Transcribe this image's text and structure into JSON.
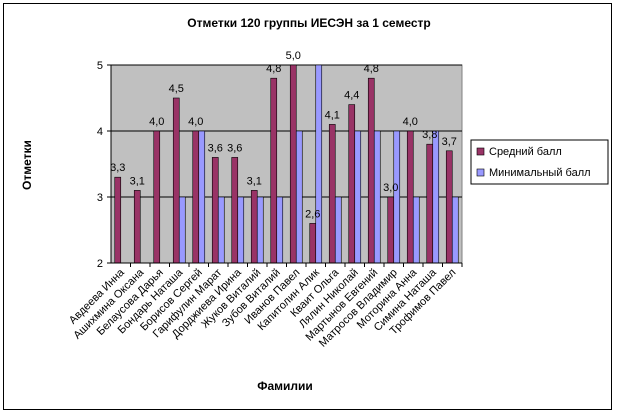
{
  "chart_data": {
    "type": "bar",
    "title": "Отметки  120 группы ИЕСЭН за 1 семестр",
    "xlabel": "Фамилии",
    "ylabel": "Отметки",
    "ylim": [
      2,
      5
    ],
    "yticks": [
      2,
      3,
      4,
      5
    ],
    "grid": true,
    "legend_position": "right",
    "categories": [
      "Авдеева Инна",
      "Ашихмина Оксана",
      "Белаусова Дарья",
      "Бондарь Наташа",
      "Борисов Сергей",
      "Гарифулин Марат",
      "Дорджиева Ирина",
      "Жуков Виталий",
      "Зубов Виталий",
      "Иванов Павел",
      "Капитолин Алик",
      "Кваит Ольга",
      "Лялин Николай",
      "Мартынов Евгений",
      "Матросов Владимир",
      "Моторина Анна",
      "Симина Наташа",
      "Трофимов Павел"
    ],
    "series": [
      {
        "name": "Средний балл",
        "color": "#993366",
        "values": [
          3.3,
          3.1,
          4.0,
          4.5,
          4.0,
          3.6,
          3.6,
          3.1,
          4.8,
          5.0,
          2.6,
          4.1,
          4.4,
          4.8,
          3.0,
          4.0,
          3.8,
          3.7
        ],
        "labels": [
          "3,3",
          "3,1",
          "4,0",
          "4,5",
          "4,0",
          "3,6",
          "3,6",
          "3,1",
          "4,8",
          "5,0",
          "2,6",
          "4,1",
          "4,4",
          "4,8",
          "3,0",
          "4,0",
          "3,8",
          "3,7"
        ]
      },
      {
        "name": "Минимальный балл",
        "color": "#9999ff",
        "values": [
          2,
          2,
          2,
          3,
          4,
          3,
          3,
          3,
          3,
          4,
          5,
          3,
          4,
          4,
          4,
          3,
          4,
          3
        ]
      }
    ]
  }
}
